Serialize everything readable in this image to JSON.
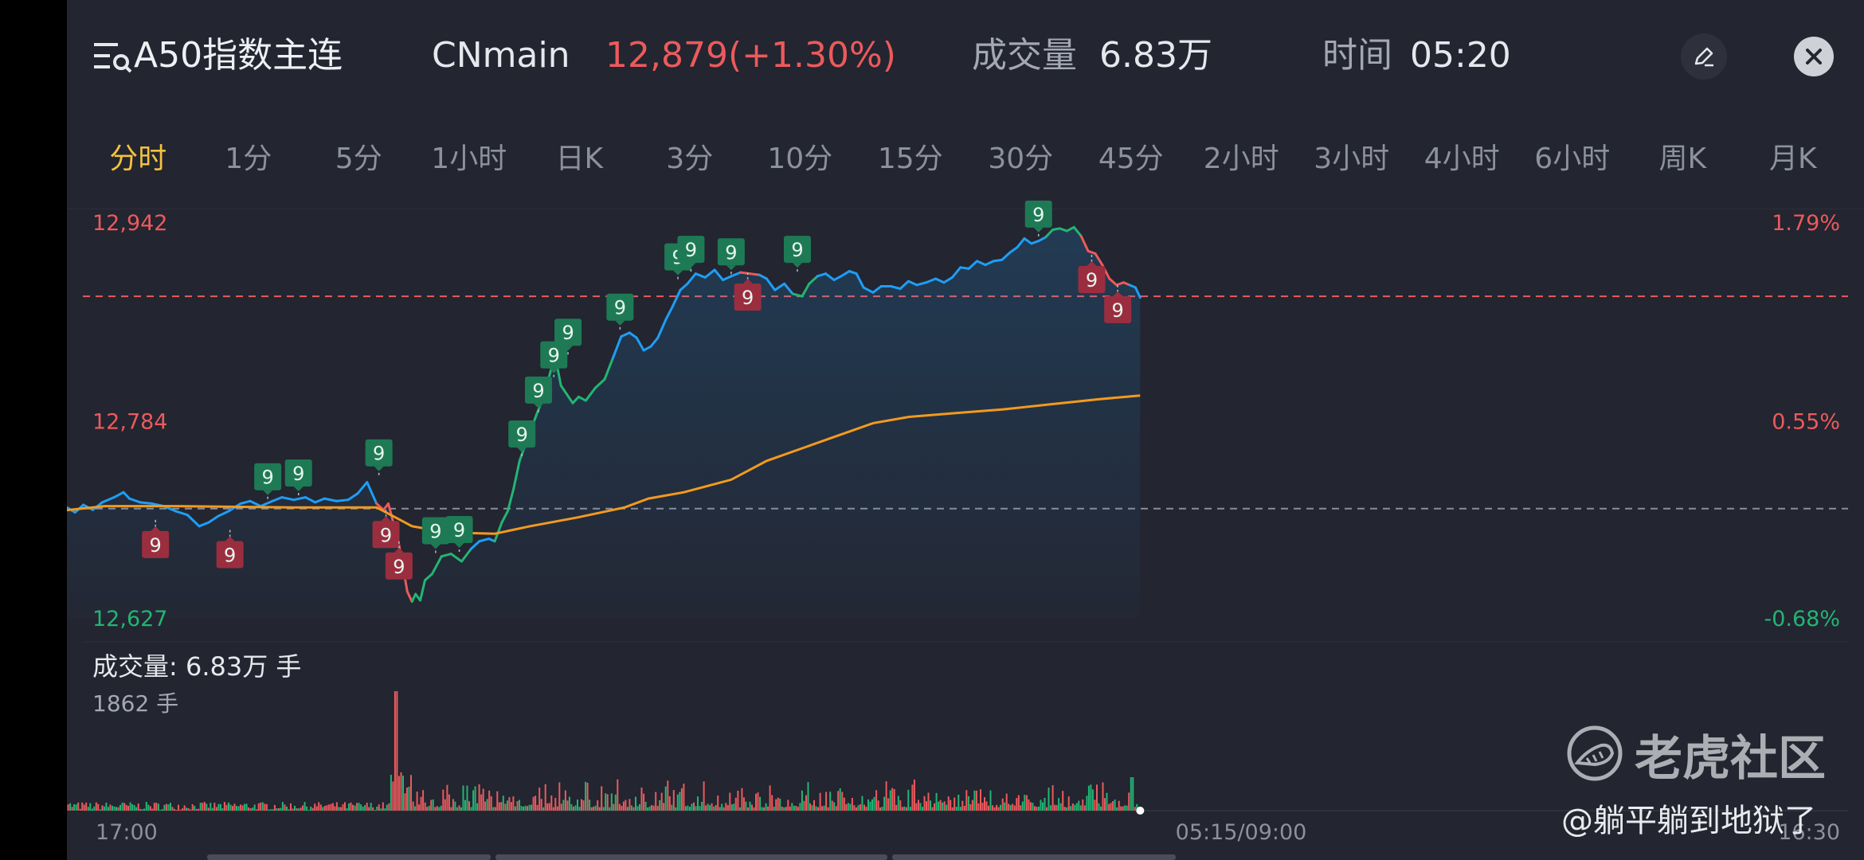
{
  "header": {
    "title": "A50指数主连",
    "contract": "CNmain",
    "price": "12,879(+1.30%)",
    "volume_label": "成交量",
    "volume_value": "6.83万",
    "time_label": "时间",
    "time_value": "05:20",
    "menu_icon": "list-search-icon",
    "edit_icon": "pencil-icon",
    "close_icon": "close-icon"
  },
  "tabs": [
    "分时",
    "1分",
    "5分",
    "1小时",
    "日K",
    "3分",
    "10分",
    "15分",
    "30分",
    "45分",
    "2小时",
    "3小时",
    "4小时",
    "6小时",
    "周K",
    "月K"
  ],
  "active_tab": 0,
  "colors": {
    "up": "#ec5a5c",
    "down": "#22b573",
    "price_line": "#1e9ef5",
    "avg_line": "#f39a1e",
    "active_tab": "#f3c23e",
    "background": "#232530"
  },
  "volume_panel": {
    "caption": "成交量:  6.83万 手",
    "max_label": "1862 手"
  },
  "chart_data": {
    "type": "line",
    "y_left_ticks": [
      "12,942",
      "12,784",
      "12,627"
    ],
    "y_right_ticks": [
      "1.79%",
      "0.55%",
      "-0.68%"
    ],
    "ylim": [
      12627,
      12942
    ],
    "prev_close": 12714,
    "ref_line": 12883,
    "x_labels": [
      "17:00",
      "05:15/09:00",
      "16:30"
    ],
    "price": [
      [
        0,
        12711
      ],
      [
        0.008,
        12715
      ],
      [
        0.015,
        12711
      ],
      [
        0.022,
        12717
      ],
      [
        0.03,
        12713
      ],
      [
        0.038,
        12719
      ],
      [
        0.048,
        12723
      ],
      [
        0.056,
        12727
      ],
      [
        0.061,
        12722
      ],
      [
        0.07,
        12719
      ],
      [
        0.08,
        12718
      ],
      [
        0.09,
        12716
      ],
      [
        0.1,
        12712
      ],
      [
        0.11,
        12709
      ],
      [
        0.12,
        12700
      ],
      [
        0.128,
        12703
      ],
      [
        0.136,
        12708
      ],
      [
        0.145,
        12712
      ],
      [
        0.155,
        12718
      ],
      [
        0.163,
        12720
      ],
      [
        0.172,
        12716
      ],
      [
        0.182,
        12720
      ],
      [
        0.19,
        12723
      ],
      [
        0.2,
        12721
      ],
      [
        0.21,
        12723
      ],
      [
        0.218,
        12719
      ],
      [
        0.226,
        12722
      ],
      [
        0.236,
        12720
      ],
      [
        0.246,
        12721
      ],
      [
        0.254,
        12726
      ],
      [
        0.262,
        12735
      ],
      [
        0.27,
        12718
      ],
      [
        0.276,
        12713
      ],
      [
        0.28,
        12718
      ],
      [
        0.285,
        12700
      ],
      [
        0.289,
        12685
      ],
      [
        0.292,
        12670
      ],
      [
        0.296,
        12648
      ],
      [
        0.3,
        12640
      ],
      [
        0.303,
        12646
      ],
      [
        0.307,
        12641
      ],
      [
        0.311,
        12657
      ],
      [
        0.317,
        12662
      ],
      [
        0.325,
        12676
      ],
      [
        0.333,
        12678
      ],
      [
        0.342,
        12672
      ],
      [
        0.35,
        12682
      ],
      [
        0.357,
        12688
      ],
      [
        0.365,
        12690
      ],
      [
        0.37,
        12688
      ],
      [
        0.376,
        12703
      ],
      [
        0.381,
        12712
      ],
      [
        0.386,
        12730
      ],
      [
        0.391,
        12752
      ],
      [
        0.396,
        12765
      ],
      [
        0.4,
        12775
      ],
      [
        0.405,
        12788
      ],
      [
        0.41,
        12800
      ],
      [
        0.414,
        12812
      ],
      [
        0.418,
        12826
      ],
      [
        0.422,
        12831
      ],
      [
        0.426,
        12812
      ],
      [
        0.431,
        12805
      ],
      [
        0.436,
        12798
      ],
      [
        0.441,
        12803
      ],
      [
        0.447,
        12800
      ],
      [
        0.455,
        12810
      ],
      [
        0.463,
        12817
      ],
      [
        0.47,
        12834
      ],
      [
        0.477,
        12851
      ],
      [
        0.484,
        12854
      ],
      [
        0.49,
        12850
      ],
      [
        0.496,
        12840
      ],
      [
        0.502,
        12843
      ],
      [
        0.508,
        12850
      ],
      [
        0.515,
        12865
      ],
      [
        0.52,
        12874
      ],
      [
        0.527,
        12888
      ],
      [
        0.533,
        12893
      ],
      [
        0.54,
        12901
      ],
      [
        0.548,
        12898
      ],
      [
        0.556,
        12904
      ],
      [
        0.563,
        12896
      ],
      [
        0.57,
        12899
      ],
      [
        0.578,
        12902
      ],
      [
        0.586,
        12901
      ],
      [
        0.594,
        12900
      ],
      [
        0.6,
        12897
      ],
      [
        0.607,
        12888
      ],
      [
        0.615,
        12893
      ],
      [
        0.622,
        12885
      ],
      [
        0.63,
        12883
      ],
      [
        0.636,
        12893
      ],
      [
        0.643,
        12899
      ],
      [
        0.65,
        12901
      ],
      [
        0.657,
        12896
      ],
      [
        0.663,
        12899
      ],
      [
        0.67,
        12903
      ],
      [
        0.676,
        12901
      ],
      [
        0.682,
        12890
      ],
      [
        0.69,
        12886
      ],
      [
        0.697,
        12891
      ],
      [
        0.705,
        12891
      ],
      [
        0.713,
        12889
      ],
      [
        0.72,
        12895
      ],
      [
        0.727,
        12892
      ],
      [
        0.735,
        12894
      ],
      [
        0.743,
        12897
      ],
      [
        0.75,
        12894
      ],
      [
        0.757,
        12898
      ],
      [
        0.764,
        12906
      ],
      [
        0.771,
        12905
      ],
      [
        0.778,
        12911
      ],
      [
        0.785,
        12908
      ],
      [
        0.792,
        12911
      ],
      [
        0.799,
        12912
      ],
      [
        0.806,
        12918
      ],
      [
        0.812,
        12922
      ],
      [
        0.818,
        12929
      ],
      [
        0.824,
        12925
      ],
      [
        0.83,
        12927
      ],
      [
        0.836,
        12930
      ],
      [
        0.842,
        12936
      ],
      [
        0.848,
        12937
      ],
      [
        0.854,
        12935
      ],
      [
        0.86,
        12938
      ],
      [
        0.866,
        12931
      ],
      [
        0.872,
        12919
      ],
      [
        0.878,
        12917
      ],
      [
        0.884,
        12908
      ],
      [
        0.89,
        12897
      ],
      [
        0.896,
        12892
      ],
      [
        0.902,
        12894
      ],
      [
        0.907,
        12892
      ],
      [
        0.912,
        12890
      ],
      [
        0.916,
        12882
      ]
    ],
    "average": [
      [
        0,
        12712
      ],
      [
        0.04,
        12716
      ],
      [
        0.1,
        12716
      ],
      [
        0.2,
        12715
      ],
      [
        0.27,
        12715
      ],
      [
        0.3,
        12700
      ],
      [
        0.33,
        12695
      ],
      [
        0.37,
        12694
      ],
      [
        0.4,
        12700
      ],
      [
        0.44,
        12707
      ],
      [
        0.48,
        12715
      ],
      [
        0.5,
        12722
      ],
      [
        0.53,
        12727
      ],
      [
        0.57,
        12737
      ],
      [
        0.6,
        12752
      ],
      [
        0.63,
        12762
      ],
      [
        0.66,
        12772
      ],
      [
        0.69,
        12782
      ],
      [
        0.72,
        12787
      ],
      [
        0.76,
        12790
      ],
      [
        0.8,
        12793
      ],
      [
        0.84,
        12797
      ],
      [
        0.88,
        12801
      ],
      [
        0.916,
        12804
      ]
    ],
    "markers": [
      {
        "x": 0.083,
        "y": 12705,
        "label": "9",
        "type": "down"
      },
      {
        "x": 0.146,
        "y": 12697,
        "label": "9",
        "type": "down"
      },
      {
        "x": 0.178,
        "y": 12721,
        "label": "9",
        "type": "up"
      },
      {
        "x": 0.204,
        "y": 12724,
        "label": "9",
        "type": "up"
      },
      {
        "x": 0.272,
        "y": 12740,
        "label": "9",
        "type": "up"
      },
      {
        "x": 0.278,
        "y": 12713,
        "label": "9",
        "type": "down"
      },
      {
        "x": 0.289,
        "y": 12688,
        "label": "9",
        "type": "down"
      },
      {
        "x": 0.32,
        "y": 12678,
        "label": "9",
        "type": "up"
      },
      {
        "x": 0.34,
        "y": 12679,
        "label": "9",
        "type": "up"
      },
      {
        "x": 0.393,
        "y": 12755,
        "label": "9",
        "type": "up"
      },
      {
        "x": 0.407,
        "y": 12790,
        "label": "9",
        "type": "up"
      },
      {
        "x": 0.42,
        "y": 12818,
        "label": "9",
        "type": "up"
      },
      {
        "x": 0.432,
        "y": 12836,
        "label": "9",
        "type": "up"
      },
      {
        "x": 0.476,
        "y": 12856,
        "label": "9",
        "type": "up"
      },
      {
        "x": 0.525,
        "y": 12896,
        "label": "9",
        "type": "up"
      },
      {
        "x": 0.536,
        "y": 12902,
        "label": "9",
        "type": "up"
      },
      {
        "x": 0.57,
        "y": 12900,
        "label": "9",
        "type": "up"
      },
      {
        "x": 0.584,
        "y": 12902,
        "label": "9",
        "type": "down"
      },
      {
        "x": 0.626,
        "y": 12902,
        "label": "9",
        "type": "up"
      },
      {
        "x": 0.83,
        "y": 12930,
        "label": "9",
        "type": "up"
      },
      {
        "x": 0.875,
        "y": 12916,
        "label": "9",
        "type": "down"
      },
      {
        "x": 0.897,
        "y": 12892,
        "label": "9",
        "type": "down"
      }
    ]
  },
  "watermark": {
    "name": "老虎社区",
    "user": "@躺平躺到地狱了",
    "logo_icon": "tiger-logo-icon"
  }
}
